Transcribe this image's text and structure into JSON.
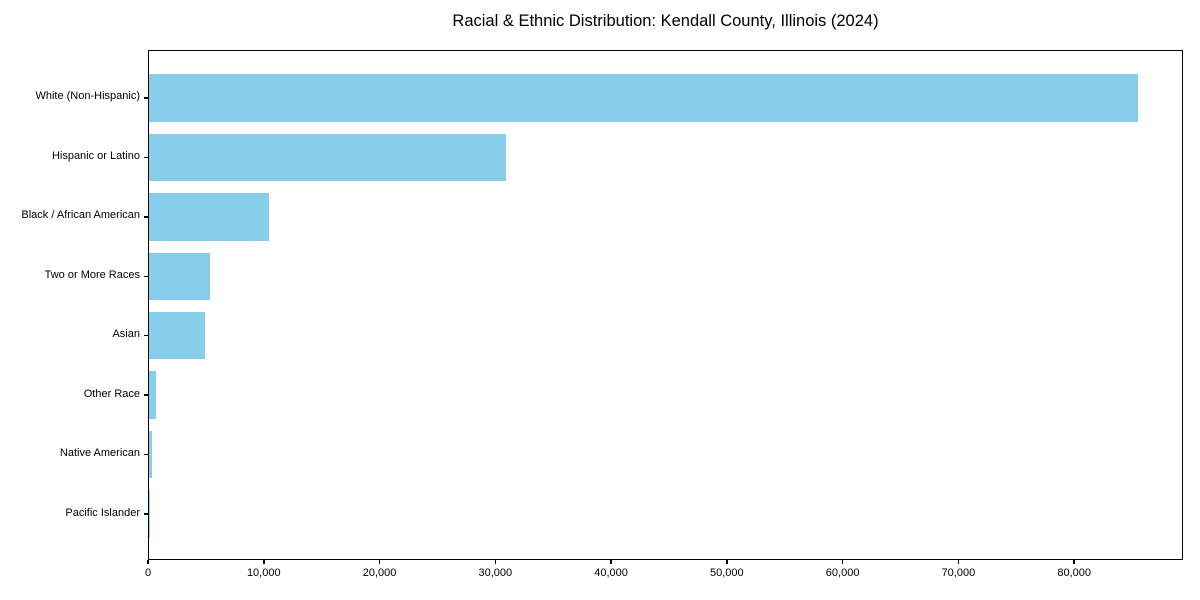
{
  "chart_data": {
    "type": "bar",
    "orientation": "horizontal",
    "title": "Racial & Ethnic Distribution: Kendall County, Illinois (2024)",
    "categories": [
      "White (Non-Hispanic)",
      "Hispanic or Latino",
      "Black / African American",
      "Two or More Races",
      "Asian",
      "Other Race",
      "Native American",
      "Pacific Islander"
    ],
    "values": [
      85400,
      30800,
      10400,
      5300,
      4800,
      600,
      300,
      50
    ],
    "bar_color": "#87CEEB",
    "xlabel": "",
    "ylabel": "",
    "xlim": [
      0,
      89400
    ],
    "xtick_values": [
      0,
      10000,
      20000,
      30000,
      40000,
      50000,
      60000,
      70000,
      80000
    ],
    "xtick_labels": [
      "0",
      "10,000",
      "20,000",
      "30,000",
      "40,000",
      "50,000",
      "60,000",
      "70,000",
      "80,000"
    ],
    "grid": false,
    "legend": null
  }
}
